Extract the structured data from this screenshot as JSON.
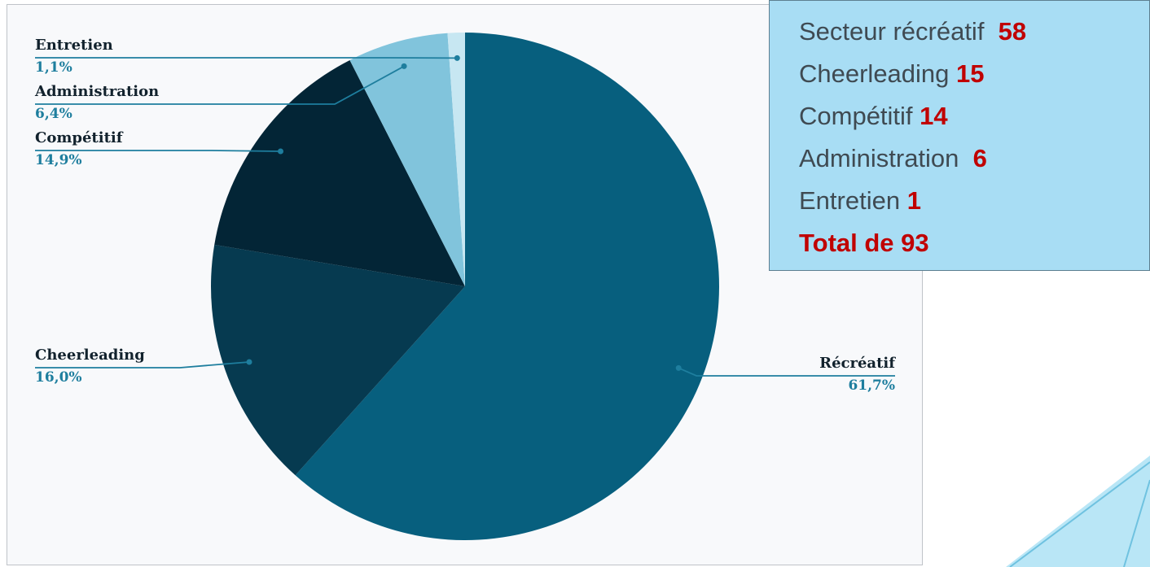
{
  "chart_data": {
    "type": "pie",
    "title": "",
    "slices": [
      {
        "label": "Récréatif",
        "value": 61.7,
        "pct_label": "61,7%",
        "color": "#075f7e"
      },
      {
        "label": "Cheerleading",
        "value": 16.0,
        "pct_label": "16,0%",
        "color": "#063a50"
      },
      {
        "label": "Compétitif",
        "value": 14.9,
        "pct_label": "14,9%",
        "color": "#032536"
      },
      {
        "label": "Administration",
        "value": 6.4,
        "pct_label": "6,4%",
        "color": "#81c4dc"
      },
      {
        "label": "Entretien",
        "value": 1.1,
        "pct_label": "1,1%",
        "color": "#c7e7f2"
      }
    ],
    "label_color": "#12222d",
    "pct_color": "#1e7e9e",
    "leader_color": "#1e7e9e"
  },
  "legend": {
    "items": [
      {
        "label": "Secteur récréatif",
        "value": "58"
      },
      {
        "label": "Cheerleading",
        "value": "15"
      },
      {
        "label": "Compétitif",
        "value": "14"
      },
      {
        "label": "Administration",
        "value": "6"
      },
      {
        "label": "Entretien",
        "value": "1"
      }
    ],
    "total": "Total de 93"
  }
}
